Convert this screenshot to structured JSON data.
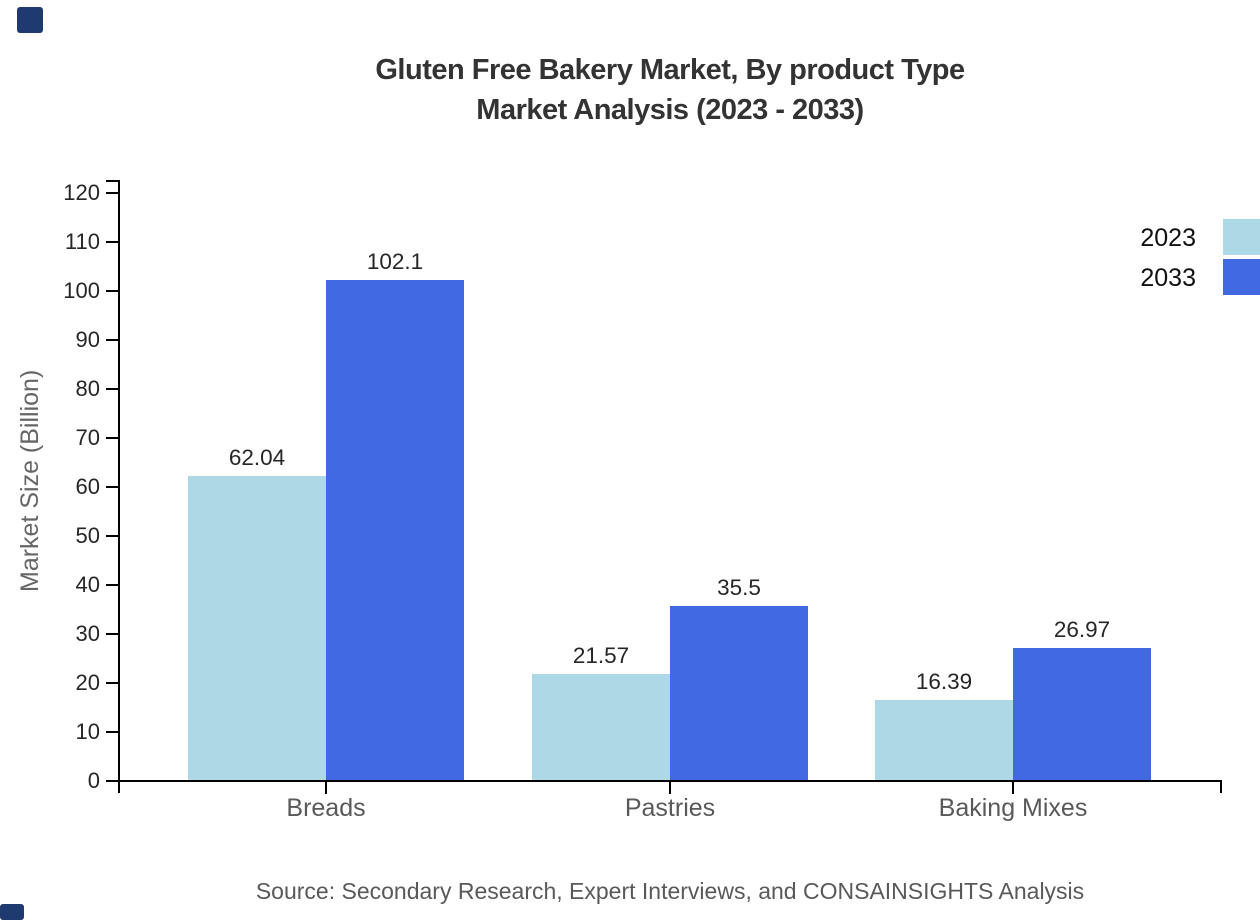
{
  "title": {
    "line1": "Gluten Free Bakery Market, By product Type",
    "line2": "Market Analysis (2023 - 2033)"
  },
  "chart_data": {
    "type": "bar",
    "title": "Gluten Free Bakery Market, By product Type Market Analysis (2023 - 2033)",
    "categories": [
      "Breads",
      "Pastries",
      "Baking Mixes"
    ],
    "series": [
      {
        "name": "2023",
        "color": "#ADD8E6",
        "values": [
          62.04,
          21.57,
          16.39
        ]
      },
      {
        "name": "2033",
        "color": "#4169E1",
        "values": [
          102.1,
          35.5,
          26.97
        ]
      }
    ],
    "value_labels": {
      "2023": [
        "62.04",
        "21.57",
        "16.39"
      ],
      "2033": [
        "102.1",
        "35.5",
        "26.97"
      ]
    },
    "xlabel": "",
    "ylabel": "Market Size (Billion)",
    "ylim": [
      0,
      120
    ],
    "yticks": [
      0,
      10,
      20,
      30,
      40,
      50,
      60,
      70,
      80,
      90,
      100,
      110,
      120
    ],
    "grid": false,
    "legend_position": "top-right"
  },
  "source_note": "Source: Secondary Research, Expert Interviews, and CONSAINSIGHTS Analysis",
  "colors": {
    "background": "#ffffff",
    "axis": "#000000",
    "title_text": "#333333",
    "tick_label_text": "#262626",
    "category_label_text": "#595959",
    "axis_title_text": "#666666",
    "value_label_text": "#262626",
    "legend_text": "#111111",
    "source_text": "#595959",
    "series_2023": "#ADD8E6",
    "series_2033": "#4169E1",
    "corner_mark": "#1e3a6e"
  }
}
